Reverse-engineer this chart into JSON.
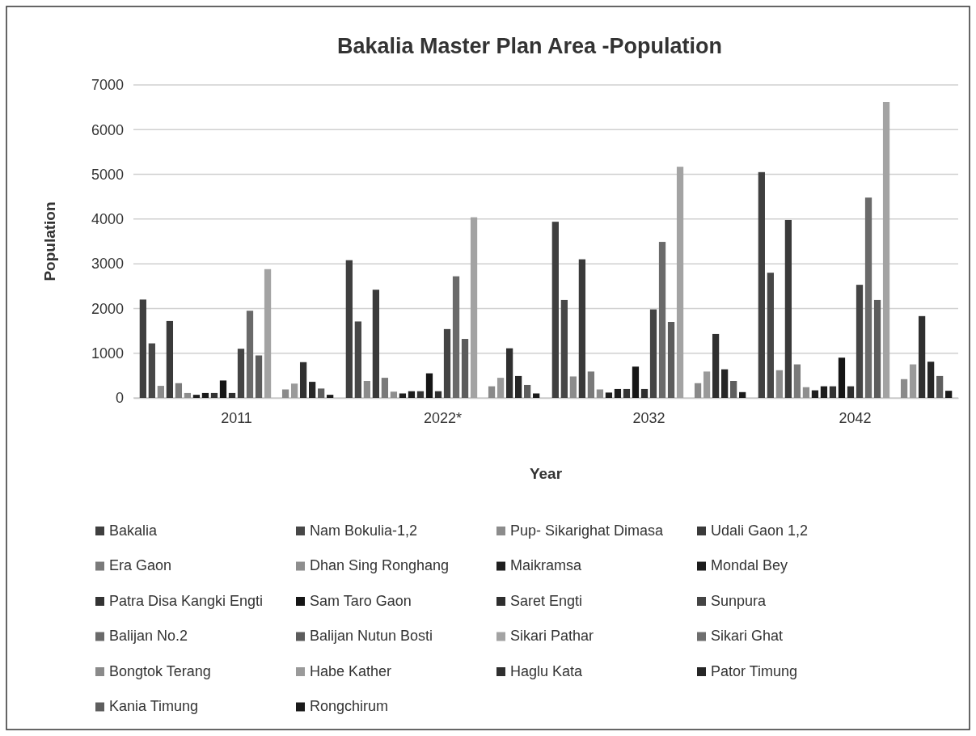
{
  "chart_data": {
    "type": "bar",
    "title": "Bakalia Master Plan Area -Population",
    "xlabel": "Year",
    "ylabel": "Population",
    "categories": [
      "2011",
      "2022*",
      "2032",
      "2042"
    ],
    "ylim": [
      0,
      7000
    ],
    "yticks": [
      0,
      1000,
      2000,
      3000,
      4000,
      5000,
      6000,
      7000
    ],
    "grid": "y",
    "legend": "bottom",
    "series": [
      {
        "name": "Bakalia",
        "color": "#3f3f3f",
        "values": [
          2200,
          3080,
          3940,
          5050
        ]
      },
      {
        "name": "Nam Bokulia-1,2",
        "color": "#474747",
        "values": [
          1220,
          1710,
          2190,
          2800
        ]
      },
      {
        "name": "Pup- Sikarighat Dimasa",
        "color": "#8c8c8c",
        "values": [
          270,
          380,
          480,
          620
        ]
      },
      {
        "name": "Udali Gaon 1,2",
        "color": "#3a3a3a",
        "values": [
          1720,
          2420,
          3100,
          3980
        ]
      },
      {
        "name": "Era Gaon",
        "color": "#7a7a7a",
        "values": [
          330,
          450,
          590,
          750
        ]
      },
      {
        "name": "Dhan Sing Ronghang",
        "color": "#8e8e8e",
        "values": [
          110,
          140,
          190,
          240
        ]
      },
      {
        "name": "Maikramsa",
        "color": "#1e1e1e",
        "values": [
          70,
          100,
          120,
          170
        ]
      },
      {
        "name": "Mondal Bey",
        "color": "#1c1c1c",
        "values": [
          110,
          150,
          200,
          260
        ]
      },
      {
        "name": "Patra Disa Kangki Engti",
        "color": "#333333",
        "values": [
          110,
          150,
          200,
          260
        ]
      },
      {
        "name": "Sam Taro Gaon",
        "color": "#151515",
        "values": [
          390,
          550,
          700,
          900
        ]
      },
      {
        "name": "Saret Engti",
        "color": "#2e2e2e",
        "values": [
          110,
          150,
          200,
          260
        ]
      },
      {
        "name": "Sunpura",
        "color": "#444444",
        "values": [
          1100,
          1540,
          1980,
          2530
        ]
      },
      {
        "name": "Balijan No.2",
        "color": "#6a6a6a",
        "values": [
          1950,
          2720,
          3490,
          4480
        ]
      },
      {
        "name": "Balijan Nutun Bosti",
        "color": "#5c5c5c",
        "values": [
          950,
          1320,
          1700,
          2190
        ]
      },
      {
        "name": "Sikari Pathar",
        "color": "#a3a3a3",
        "values": [
          2880,
          4040,
          5170,
          6620
        ]
      },
      {
        "name": "Sikari Ghat",
        "color": "#6e6e6e",
        "values": [
          0,
          0,
          0,
          0
        ]
      },
      {
        "name": "Bongtok Terang",
        "color": "#8a8a8a",
        "values": [
          190,
          260,
          330,
          420
        ]
      },
      {
        "name": "Habe Kather",
        "color": "#9a9a9a",
        "values": [
          320,
          450,
          590,
          750
        ]
      },
      {
        "name": "Haglu Kata",
        "color": "#2f2f2f",
        "values": [
          800,
          1110,
          1430,
          1830
        ]
      },
      {
        "name": "Pator Timung",
        "color": "#262626",
        "values": [
          360,
          490,
          640,
          810
        ]
      },
      {
        "name": "Kania Timung",
        "color": "#5e5e5e",
        "values": [
          210,
          290,
          380,
          490
        ]
      },
      {
        "name": "Rongchirum",
        "color": "#1b1b1b",
        "values": [
          70,
          100,
          130,
          160
        ]
      }
    ]
  }
}
